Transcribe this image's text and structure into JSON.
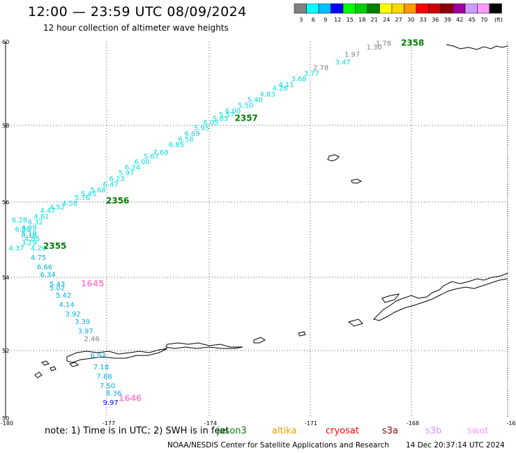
{
  "title": "12:00 — 23:59 UTC 08/09/2024",
  "subtitle": "12 hour collection of altimeter wave heights",
  "legend": {
    "unit": "(ft)",
    "bins": [
      {
        "label": "3",
        "color": "#808080"
      },
      {
        "label": "6",
        "color": "#00ffff"
      },
      {
        "label": "9",
        "color": "#00bfff"
      },
      {
        "label": "12",
        "color": "#0000ff"
      },
      {
        "label": "15",
        "color": "#00ff00"
      },
      {
        "label": "18",
        "color": "#00cc00"
      },
      {
        "label": "21",
        "color": "#008000"
      },
      {
        "label": "24",
        "color": "#ffff00"
      },
      {
        "label": "27",
        "color": "#ffd700"
      },
      {
        "label": "30",
        "color": "#ff9900"
      },
      {
        "label": "33",
        "color": "#ff0000"
      },
      {
        "label": "36",
        "color": "#cc0000"
      },
      {
        "label": "39",
        "color": "#8b0000"
      },
      {
        "label": "42",
        "color": "#a000a0"
      },
      {
        "label": "45",
        "color": "#cc99ff"
      },
      {
        "label": "70",
        "color": "#ff99ff"
      },
      {
        "label": "",
        "color": "#000000"
      }
    ]
  },
  "axes": {
    "lat_labels": [
      "60",
      "58",
      "56",
      "54",
      "52",
      "50"
    ],
    "lon_labels": [
      "-180",
      "-177",
      "-174",
      "-171",
      "-168",
      "-16"
    ]
  },
  "track_colors": {
    "gray": "#808080",
    "cyan": "#00dcdc",
    "blue": "#00b0dc",
    "darkblue": "#0000dd",
    "green": "#008000",
    "pink": "#ff8cd6"
  },
  "tracks": [
    {
      "id": "northeast-pass",
      "time_labels": [
        {
          "text": "2358",
          "lon": -167.4,
          "lat": 59.9,
          "color": "green"
        },
        {
          "text": "2357",
          "lon": -172.7,
          "lat": 57.9,
          "color": "green"
        },
        {
          "text": "2356",
          "lon": -176.8,
          "lat": 55.7,
          "color": "green"
        },
        {
          "text": "2355",
          "lon": -178.8,
          "lat": 54.5,
          "color": "green"
        }
      ],
      "heights": [
        {
          "text": "1.78",
          "lon": -168.2,
          "lat": 59.9,
          "color": "gray"
        },
        {
          "text": "1.30",
          "lon": -168.5,
          "lat": 59.8,
          "color": "gray"
        },
        {
          "text": "1.97",
          "lon": -169.2,
          "lat": 59.6,
          "color": "gray"
        },
        {
          "text": "3.47",
          "lon": -169.5,
          "lat": 59.4,
          "color": "cyan"
        },
        {
          "text": "2.78",
          "lon": -170.2,
          "lat": 59.25,
          "color": "gray"
        },
        {
          "text": "3.77",
          "lon": -170.5,
          "lat": 59.1,
          "color": "cyan"
        },
        {
          "text": "3.68",
          "lon": -170.9,
          "lat": 58.95,
          "color": "cyan"
        },
        {
          "text": "4.11",
          "lon": -171.3,
          "lat": 58.8,
          "color": "cyan"
        },
        {
          "text": "4.26",
          "lon": -171.5,
          "lat": 58.7,
          "color": "cyan"
        },
        {
          "text": "4.83",
          "lon": -171.9,
          "lat": 58.55,
          "color": "cyan"
        },
        {
          "text": "5.40",
          "lon": -172.3,
          "lat": 58.4,
          "color": "cyan"
        },
        {
          "text": "5.50",
          "lon": -172.6,
          "lat": 58.25,
          "color": "cyan"
        },
        {
          "text": "6.00",
          "lon": -173.0,
          "lat": 58.1,
          "color": "cyan"
        },
        {
          "text": "5.57",
          "lon": -173.2,
          "lat": 58.0,
          "color": "cyan"
        },
        {
          "text": "5.83",
          "lon": -173.4,
          "lat": 57.9,
          "color": "cyan"
        },
        {
          "text": "6.05",
          "lon": -173.7,
          "lat": 57.8,
          "color": "cyan"
        },
        {
          "text": "5.95",
          "lon": -174.0,
          "lat": 57.65,
          "color": "cyan"
        },
        {
          "text": "6.69",
          "lon": -174.3,
          "lat": 57.5,
          "color": "cyan"
        },
        {
          "text": "6.58",
          "lon": -174.5,
          "lat": 57.35,
          "color": "cyan"
        },
        {
          "text": "6.85",
          "lon": -174.8,
          "lat": 57.2,
          "color": "cyan"
        },
        {
          "text": "7.60",
          "lon": -175.3,
          "lat": 57.0,
          "color": "cyan"
        },
        {
          "text": "5.67",
          "lon": -175.6,
          "lat": 56.9,
          "color": "cyan"
        },
        {
          "text": "6.00",
          "lon": -175.9,
          "lat": 56.75,
          "color": "cyan"
        },
        {
          "text": "6.24",
          "lon": -176.2,
          "lat": 56.6,
          "color": "cyan"
        },
        {
          "text": "5.97",
          "lon": -176.4,
          "lat": 56.45,
          "color": "cyan"
        },
        {
          "text": "6.23",
          "lon": -176.7,
          "lat": 56.3,
          "color": "cyan"
        },
        {
          "text": "6.47",
          "lon": -176.9,
          "lat": 56.15,
          "color": "cyan"
        },
        {
          "text": "5.68",
          "lon": -177.3,
          "lat": 56.0,
          "color": "cyan"
        },
        {
          "text": "5.45",
          "lon": -177.6,
          "lat": 55.9,
          "color": "cyan"
        },
        {
          "text": "5.76",
          "lon": -177.8,
          "lat": 55.8,
          "color": "cyan"
        },
        {
          "text": "4.58",
          "lon": -178.2,
          "lat": 55.65,
          "color": "cyan"
        },
        {
          "text": "4.52",
          "lon": -178.6,
          "lat": 55.55,
          "color": "cyan"
        },
        {
          "text": "4.47",
          "lon": -178.9,
          "lat": 55.45,
          "color": "cyan"
        },
        {
          "text": "4.61",
          "lon": -179.1,
          "lat": 55.3,
          "color": "cyan"
        },
        {
          "text": "4.32",
          "lon": -179.3,
          "lat": 55.15,
          "color": "cyan"
        },
        {
          "text": "4.99",
          "lon": -179.5,
          "lat": 55.0,
          "color": "cyan"
        },
        {
          "text": "5.19",
          "lon": -179.5,
          "lat": 54.85,
          "color": "cyan"
        },
        {
          "text": "6.28",
          "lon": -179.8,
          "lat": 55.2,
          "color": "cyan"
        },
        {
          "text": "6.88",
          "lon": -179.7,
          "lat": 54.95,
          "color": "cyan"
        },
        {
          "text": "6.16",
          "lon": -179.5,
          "lat": 54.8,
          "color": "cyan"
        },
        {
          "text": "4.85",
          "lon": -179.4,
          "lat": 54.7,
          "color": "cyan"
        },
        {
          "text": "3.29",
          "lon": -179.5,
          "lat": 54.6,
          "color": "cyan"
        },
        {
          "text": "4.37",
          "lon": -179.9,
          "lat": 54.45,
          "color": "cyan"
        },
        {
          "text": "4.20",
          "lon": -179.2,
          "lat": 54.45,
          "color": "cyan"
        }
      ]
    },
    {
      "id": "southwest-pass",
      "time_labels": [
        {
          "text": "1645",
          "lon": -177.6,
          "lat": 53.5,
          "color": "pink"
        },
        {
          "text": "1646",
          "lon": -176.4,
          "lat": 50.45,
          "color": "pink"
        }
      ],
      "heights": [
        {
          "text": "4.75",
          "lon": -179.2,
          "lat": 54.2,
          "color": "blue"
        },
        {
          "text": "6.66",
          "lon": -179.0,
          "lat": 53.95,
          "color": "blue"
        },
        {
          "text": "6.34",
          "lon": -178.9,
          "lat": 53.75,
          "color": "blue"
        },
        {
          "text": "5.43",
          "lon": -178.6,
          "lat": 53.5,
          "color": "blue"
        },
        {
          "text": "5.02",
          "lon": -178.6,
          "lat": 53.4,
          "color": "blue"
        },
        {
          "text": "5.42",
          "lon": -178.4,
          "lat": 53.2,
          "color": "blue"
        },
        {
          "text": "4.14",
          "lon": -178.3,
          "lat": 52.95,
          "color": "blue"
        },
        {
          "text": "3.92",
          "lon": -178.1,
          "lat": 52.7,
          "color": "blue"
        },
        {
          "text": "3.39",
          "lon": -177.8,
          "lat": 52.5,
          "color": "blue"
        },
        {
          "text": "3.97",
          "lon": -177.7,
          "lat": 52.25,
          "color": "blue"
        },
        {
          "text": "2.46",
          "lon": -177.5,
          "lat": 52.05,
          "color": "gray"
        },
        {
          "text": "6.93",
          "lon": -177.3,
          "lat": 51.6,
          "color": "blue"
        },
        {
          "text": "7.18",
          "lon": -177.2,
          "lat": 51.3,
          "color": "blue"
        },
        {
          "text": "7.88",
          "lon": -177.1,
          "lat": 51.05,
          "color": "blue"
        },
        {
          "text": "7.50",
          "lon": -177.0,
          "lat": 50.8,
          "color": "blue"
        },
        {
          "text": "8.36",
          "lon": -176.8,
          "lat": 50.6,
          "color": "blue"
        },
        {
          "text": "9.97",
          "lon": -176.9,
          "lat": 50.35,
          "color": "darkblue"
        }
      ]
    }
  ],
  "note": "note:  1) Time is in UTC;  2) SWH is in feet",
  "satellites": [
    {
      "name": "jason3",
      "color": "#008000"
    },
    {
      "name": "altika",
      "color": "#ff9900"
    },
    {
      "name": "cryosat",
      "color": "#ff0000"
    },
    {
      "name": "s3a",
      "color": "#8b0000"
    },
    {
      "name": "s3b",
      "color": "#cc99ff"
    },
    {
      "name": "swot",
      "color": "#ff99ff"
    }
  ],
  "credit": "NOAA/NESDIS Center for Satellite Applications and Research",
  "credit_date": "14 Dec 20:37:14 UTC 2024"
}
